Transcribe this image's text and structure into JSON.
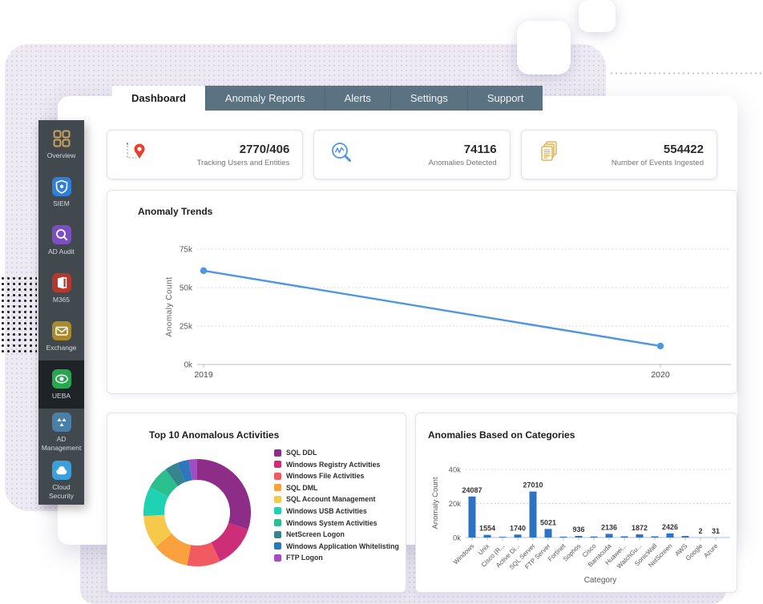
{
  "tabs": [
    {
      "label": "Dashboard",
      "active": true
    },
    {
      "label": "Anomaly Reports",
      "active": false
    },
    {
      "label": "Alerts",
      "active": false
    },
    {
      "label": "Settings",
      "active": false
    },
    {
      "label": "Support",
      "active": false
    }
  ],
  "sidebar": {
    "items": [
      {
        "label": "Overview",
        "icon": "grid-icon",
        "color": "transparent",
        "active": false
      },
      {
        "label": "SIEM",
        "icon": "shield-icon",
        "color": "#2f7ed8",
        "active": false
      },
      {
        "label": "AD Audit",
        "icon": "magnifier-icon",
        "color": "#7b4fc0",
        "active": false
      },
      {
        "label": "M365",
        "icon": "office-icon",
        "color": "#b5382e",
        "active": false
      },
      {
        "label": "Exchange",
        "icon": "envelope-icon",
        "color": "#a98b2d",
        "active": false
      },
      {
        "label": "UEBA",
        "icon": "eye-icon",
        "color": "#27a850",
        "active": true
      },
      {
        "label": "AD Management",
        "icon": "ad-management-icon",
        "color": "#4a7fa8",
        "active": false
      },
      {
        "label": "Cloud Security",
        "icon": "cloud-icon",
        "color": "#3aa0dc",
        "active": false
      }
    ]
  },
  "stats": [
    {
      "value": "2770/406",
      "label": "Tracking Users and Entities",
      "icon": "location-pin-icon"
    },
    {
      "value": "74116",
      "label": "Anomalies Detected",
      "icon": "anomaly-search-icon"
    },
    {
      "value": "554422",
      "label": "Number of Events Ingested",
      "icon": "events-document-icon"
    }
  ],
  "panels": {
    "trends": {
      "title": "Anomaly Trends"
    },
    "activities": {
      "title": "Top 10 Anomalous Activities"
    },
    "categories": {
      "title": "Anomalies Based on Categories"
    }
  },
  "chart_data": [
    {
      "id": "anomaly_trends",
      "type": "line",
      "title": "Anomaly Trends",
      "x": [
        "2019",
        "2020"
      ],
      "values": [
        61000,
        12000
      ],
      "xlabel": "",
      "ylabel": "Anomaly Count",
      "ylim": [
        0,
        75000
      ],
      "yticks": [
        "0k",
        "25k",
        "50k",
        "75k"
      ],
      "line_color": "#4d96e0",
      "grid": "dotted"
    },
    {
      "id": "top10_activities",
      "type": "pie",
      "title": "Top 10 Anomalous Activities",
      "donut": true,
      "legend_position": "right",
      "slices": [
        {
          "label": "SQL DDL",
          "percent": 30,
          "color": "#8e2d87"
        },
        {
          "label": "Windows Registry Activities",
          "percent": 13,
          "color": "#ce2e78"
        },
        {
          "label": "Windows File Activities",
          "percent": 10,
          "color": "#f15b5f"
        },
        {
          "label": "SQL DML",
          "percent": 11,
          "color": "#f8a13d"
        },
        {
          "label": "SQL Account Management",
          "percent": 10,
          "color": "#f6c94a"
        },
        {
          "label": "Windows USB Activities",
          "percent": 9,
          "color": "#1fd2b2"
        },
        {
          "label": "Windows System Activities",
          "percent": 7,
          "color": "#2bbf8e"
        },
        {
          "label": "NetScreen Logon",
          "percent": 4,
          "color": "#35858e"
        },
        {
          "label": "Windows Application Whitelisting",
          "percent": 3.5,
          "color": "#2d77bd"
        },
        {
          "label": "FTP Logon",
          "percent": 2.5,
          "color": "#a04ec4"
        }
      ]
    },
    {
      "id": "anomalies_by_category",
      "type": "bar",
      "title": "Anomalies Based on Categories",
      "xlabel": "Category",
      "ylabel": "Anomaly Count",
      "ylim": [
        0,
        40000
      ],
      "yticks": [
        "0k",
        "20k",
        "40k"
      ],
      "bar_color": "#2d73c2",
      "categories": [
        "Windows",
        "Unix",
        "Cisco (R...",
        "Active Di...",
        "SQL Server",
        "FTP Server",
        "Fortinet",
        "Sophos",
        "Cisco",
        "Barracuda",
        "Huawei...",
        "WatchGu...",
        "SonicWall",
        "NetScreen",
        "AWS",
        "Google",
        "Azure"
      ],
      "values": [
        24087,
        1554,
        400,
        1740,
        27010,
        5021,
        500,
        936,
        600,
        2136,
        700,
        1872,
        700,
        2426,
        900,
        2,
        31
      ],
      "value_labels": [
        "24087",
        "1554",
        "",
        "1740",
        "27010",
        "5021",
        "",
        "936",
        "",
        "2136",
        "",
        "1872",
        "",
        "2426",
        "",
        "2",
        "31"
      ]
    }
  ]
}
